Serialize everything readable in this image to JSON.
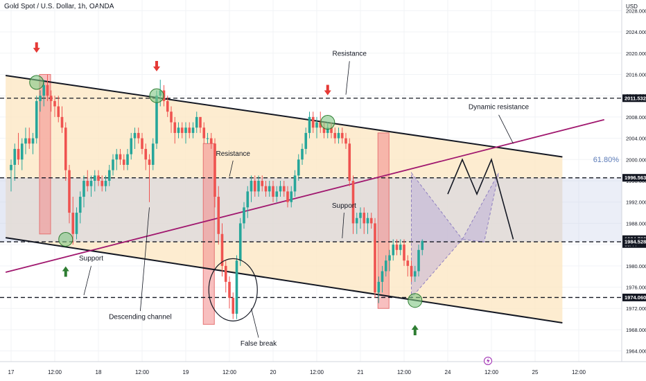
{
  "header": {
    "title": "Gold Spot / U.S. Dollar, 1h, OANDA"
  },
  "chart_data": {
    "type": "candlestick",
    "title": "Gold Spot / U.S. Dollar, 1h, OANDA",
    "currency": "USD",
    "y_axis": {
      "range": [
        1962,
        2030
      ],
      "ticks": [
        1964,
        1968,
        1972,
        1976,
        1980,
        1984,
        1988,
        1992,
        1996,
        2000,
        2004,
        2008,
        2012,
        2016,
        2020,
        2024,
        2028
      ]
    },
    "x_axis": {
      "ticks": [
        {
          "label": "17",
          "x": 0
        },
        {
          "label": "12:00",
          "x": 12
        },
        {
          "label": "18",
          "x": 24
        },
        {
          "label": "12:00",
          "x": 36
        },
        {
          "label": "19",
          "x": 48
        },
        {
          "label": "12:00",
          "x": 60
        },
        {
          "label": "20",
          "x": 72
        },
        {
          "label": "12:00",
          "x": 84
        },
        {
          "label": "21",
          "x": 96
        },
        {
          "label": "12:00",
          "x": 108
        },
        {
          "label": "24",
          "x": 120
        },
        {
          "label": "12:00",
          "x": 132
        },
        {
          "label": "25",
          "x": 144
        },
        {
          "label": "12:00",
          "x": 156
        }
      ]
    },
    "price_labels": [
      {
        "text": "2011.532",
        "value": 2011.532,
        "style": "line"
      },
      {
        "text": "1996.563",
        "value": 1996.563,
        "style": "line"
      },
      {
        "text": "1984.700",
        "sub": "06:44",
        "value": 1984.7,
        "style": "current"
      },
      {
        "text": "1984.528",
        "value": 1984.528,
        "style": "line"
      },
      {
        "text": "1974.060",
        "value": 1974.06,
        "style": "line"
      }
    ],
    "fib_label": "61.80%",
    "horizontal_levels": [
      2011.532,
      1996.563,
      1984.528,
      1974.06
    ],
    "zones": {
      "support_band": {
        "from": 1984.528,
        "to": 1996.563,
        "color": "#c5cee8"
      },
      "channel_fill_color": "#fde7c4"
    },
    "channel": {
      "upper": [
        {
          "x": -1.5,
          "y": 2015.8
        },
        {
          "x": 151.5,
          "y": 2000.5
        }
      ],
      "lower": [
        {
          "x": -1.5,
          "y": 1985.3
        },
        {
          "x": 151.5,
          "y": 1969.3
        }
      ]
    },
    "trendline": [
      {
        "x": -1.5,
        "y": 1978.8
      },
      {
        "x": 163,
        "y": 2007.5
      }
    ],
    "annotations": [
      {
        "text": "Resistance",
        "x": 93.0,
        "y": 2019.5
      },
      {
        "text": "Resistance",
        "x": 61.0,
        "y": 2000.7
      },
      {
        "text": "Dynamic resistance",
        "x": 134.0,
        "y": 2009.5
      },
      {
        "text": "Support",
        "x": 91.5,
        "y": 1990.9
      },
      {
        "text": "Support",
        "x": 22.0,
        "y": 1981.0
      },
      {
        "text": "Descending channel",
        "x": 35.5,
        "y": 1970.0
      },
      {
        "text": "False break",
        "x": 68.0,
        "y": 1965.0
      }
    ],
    "candles": [
      {
        "o": 1998,
        "h": 2000,
        "l": 1994,
        "c": 1999
      },
      {
        "o": 1999,
        "h": 2003,
        "l": 1996,
        "c": 2002
      },
      {
        "o": 2002,
        "h": 2005,
        "l": 1999,
        "c": 2000
      },
      {
        "o": 2000,
        "h": 2004,
        "l": 1998,
        "c": 2003
      },
      {
        "o": 2003,
        "h": 2006,
        "l": 2001,
        "c": 2004
      },
      {
        "o": 2004,
        "h": 2006,
        "l": 2002,
        "c": 2003
      },
      {
        "o": 2003,
        "h": 2005,
        "l": 2001,
        "c": 2004
      },
      {
        "o": 2004,
        "h": 2012,
        "l": 2003,
        "c": 2011
      },
      {
        "o": 2011,
        "h": 2013,
        "l": 2009,
        "c": 2012
      },
      {
        "o": 2012,
        "h": 2015,
        "l": 2010,
        "c": 2014
      },
      {
        "o": 2014,
        "h": 2016,
        "l": 2011,
        "c": 2012
      },
      {
        "o": 2012,
        "h": 2013,
        "l": 2009,
        "c": 2011
      },
      {
        "o": 2011,
        "h": 2012,
        "l": 2008,
        "c": 2010
      },
      {
        "o": 2010,
        "h": 2012,
        "l": 2007,
        "c": 2008
      },
      {
        "o": 2008,
        "h": 2010,
        "l": 2005,
        "c": 2006
      },
      {
        "o": 2006,
        "h": 2007,
        "l": 1996,
        "c": 1998
      },
      {
        "o": 1998,
        "h": 1999,
        "l": 1988,
        "c": 1990
      },
      {
        "o": 1990,
        "h": 1993,
        "l": 1984,
        "c": 1986
      },
      {
        "o": 1986,
        "h": 1991,
        "l": 1985,
        "c": 1990
      },
      {
        "o": 1990,
        "h": 1994,
        "l": 1988,
        "c": 1993
      },
      {
        "o": 1993,
        "h": 1997,
        "l": 1991,
        "c": 1996
      },
      {
        "o": 1996,
        "h": 1998,
        "l": 1994,
        "c": 1995
      },
      {
        "o": 1995,
        "h": 1997,
        "l": 1993,
        "c": 1996
      },
      {
        "o": 1996,
        "h": 1998,
        "l": 1994,
        "c": 1997
      },
      {
        "o": 1997,
        "h": 1998,
        "l": 1995,
        "c": 1996
      },
      {
        "o": 1996,
        "h": 1997,
        "l": 1994,
        "c": 1995
      },
      {
        "o": 1995,
        "h": 1997,
        "l": 1994,
        "c": 1996
      },
      {
        "o": 1996,
        "h": 1999,
        "l": 1995,
        "c": 1998
      },
      {
        "o": 1998,
        "h": 2001,
        "l": 1997,
        "c": 2000
      },
      {
        "o": 2000,
        "h": 2002,
        "l": 1998,
        "c": 2001
      },
      {
        "o": 2001,
        "h": 2002,
        "l": 1999,
        "c": 2000
      },
      {
        "o": 2000,
        "h": 2001,
        "l": 1998,
        "c": 1999
      },
      {
        "o": 1999,
        "h": 2002,
        "l": 1998,
        "c": 2001
      },
      {
        "o": 2001,
        "h": 2005,
        "l": 2000,
        "c": 2004
      },
      {
        "o": 2004,
        "h": 2006,
        "l": 2002,
        "c": 2005
      },
      {
        "o": 2005,
        "h": 2006,
        "l": 2003,
        "c": 2004
      },
      {
        "o": 2004,
        "h": 2005,
        "l": 2001,
        "c": 2002
      },
      {
        "o": 2002,
        "h": 2003,
        "l": 1998,
        "c": 2000
      },
      {
        "o": 2000,
        "h": 2001,
        "l": 1992,
        "c": 1999
      },
      {
        "o": 1999,
        "h": 2004,
        "l": 1998,
        "c": 2003
      },
      {
        "o": 2003,
        "h": 2013,
        "l": 2002,
        "c": 2012
      },
      {
        "o": 2012,
        "h": 2015,
        "l": 2010,
        "c": 2013
      },
      {
        "o": 2013,
        "h": 2014,
        "l": 2010,
        "c": 2011
      },
      {
        "o": 2011,
        "h": 2012,
        "l": 2008,
        "c": 2009
      },
      {
        "o": 2009,
        "h": 2010,
        "l": 2005,
        "c": 2007
      },
      {
        "o": 2007,
        "h": 2008,
        "l": 2003,
        "c": 2005
      },
      {
        "o": 2005,
        "h": 2007,
        "l": 2004,
        "c": 2006
      },
      {
        "o": 2006,
        "h": 2007,
        "l": 2004,
        "c": 2005
      },
      {
        "o": 2005,
        "h": 2007,
        "l": 2003,
        "c": 2006
      },
      {
        "o": 2006,
        "h": 2007,
        "l": 2004,
        "c": 2005
      },
      {
        "o": 2005,
        "h": 2007,
        "l": 2004,
        "c": 2006
      },
      {
        "o": 2006,
        "h": 2009,
        "l": 2005,
        "c": 2008
      },
      {
        "o": 2008,
        "h": 2008,
        "l": 2005,
        "c": 2006
      },
      {
        "o": 2006,
        "h": 2007,
        "l": 2003,
        "c": 2004
      },
      {
        "o": 2004,
        "h": 2005,
        "l": 2003,
        "c": 2004
      },
      {
        "o": 2004,
        "h": 2005,
        "l": 2002,
        "c": 2003
      },
      {
        "o": 2003,
        "h": 2004,
        "l": 1991,
        "c": 1993
      },
      {
        "o": 1993,
        "h": 1995,
        "l": 1984,
        "c": 1986
      },
      {
        "o": 1986,
        "h": 1988,
        "l": 1978,
        "c": 1980
      },
      {
        "o": 1980,
        "h": 1981,
        "l": 1975,
        "c": 1977
      },
      {
        "o": 1977,
        "h": 1978,
        "l": 1972,
        "c": 1974
      },
      {
        "o": 1974,
        "h": 1975,
        "l": 1970,
        "c": 1971
      },
      {
        "o": 1971,
        "h": 1982,
        "l": 1970,
        "c": 1981
      },
      {
        "o": 1981,
        "h": 1989,
        "l": 1980,
        "c": 1988
      },
      {
        "o": 1988,
        "h": 1992,
        "l": 1987,
        "c": 1991
      },
      {
        "o": 1991,
        "h": 1995,
        "l": 1989,
        "c": 1994
      },
      {
        "o": 1994,
        "h": 1997,
        "l": 1992,
        "c": 1996
      },
      {
        "o": 1996,
        "h": 1997,
        "l": 1993,
        "c": 1994
      },
      {
        "o": 1994,
        "h": 1997,
        "l": 1993,
        "c": 1996
      },
      {
        "o": 1996,
        "h": 1997,
        "l": 1994,
        "c": 1995
      },
      {
        "o": 1995,
        "h": 1996,
        "l": 1993,
        "c": 1994
      },
      {
        "o": 1994,
        "h": 1996,
        "l": 1993,
        "c": 1995
      },
      {
        "o": 1995,
        "h": 1996,
        "l": 1992,
        "c": 1993
      },
      {
        "o": 1993,
        "h": 1995,
        "l": 1992,
        "c": 1994
      },
      {
        "o": 1994,
        "h": 1996,
        "l": 1993,
        "c": 1995
      },
      {
        "o": 1995,
        "h": 1996,
        "l": 1993,
        "c": 1994
      },
      {
        "o": 1994,
        "h": 1995,
        "l": 1991,
        "c": 1992
      },
      {
        "o": 1992,
        "h": 1995,
        "l": 1991,
        "c": 1994
      },
      {
        "o": 1994,
        "h": 1998,
        "l": 1993,
        "c": 1997
      },
      {
        "o": 1997,
        "h": 2001,
        "l": 1996,
        "c": 2000
      },
      {
        "o": 2000,
        "h": 2003,
        "l": 1999,
        "c": 2002
      },
      {
        "o": 2002,
        "h": 2006,
        "l": 2001,
        "c": 2005
      },
      {
        "o": 2005,
        "h": 2009,
        "l": 2004,
        "c": 2008
      },
      {
        "o": 2008,
        "h": 2009,
        "l": 2005,
        "c": 2006
      },
      {
        "o": 2006,
        "h": 2008,
        "l": 2004,
        "c": 2007
      },
      {
        "o": 2007,
        "h": 2009,
        "l": 2005,
        "c": 2006
      },
      {
        "o": 2006,
        "h": 2007,
        "l": 2004,
        "c": 2005
      },
      {
        "o": 2005,
        "h": 2007,
        "l": 2004,
        "c": 2006
      },
      {
        "o": 2006,
        "h": 2007,
        "l": 2004,
        "c": 2005
      },
      {
        "o": 2005,
        "h": 2006,
        "l": 2003,
        "c": 2004
      },
      {
        "o": 2004,
        "h": 2006,
        "l": 2003,
        "c": 2005
      },
      {
        "o": 2005,
        "h": 2006,
        "l": 2003,
        "c": 2004
      },
      {
        "o": 2004,
        "h": 2005,
        "l": 2002,
        "c": 2003
      },
      {
        "o": 2003,
        "h": 2004,
        "l": 1995,
        "c": 1996
      },
      {
        "o": 1996,
        "h": 1997,
        "l": 1986,
        "c": 1988
      },
      {
        "o": 1988,
        "h": 1990,
        "l": 1986,
        "c": 1989
      },
      {
        "o": 1989,
        "h": 1991,
        "l": 1987,
        "c": 1990
      },
      {
        "o": 1990,
        "h": 1991,
        "l": 1986,
        "c": 1988
      },
      {
        "o": 1988,
        "h": 1990,
        "l": 1986,
        "c": 1989
      },
      {
        "o": 1989,
        "h": 1990,
        "l": 1987,
        "c": 1988
      },
      {
        "o": 1988,
        "h": 1989,
        "l": 1974,
        "c": 1975
      },
      {
        "o": 1975,
        "h": 1978,
        "l": 1973,
        "c": 1977
      },
      {
        "o": 1977,
        "h": 1980,
        "l": 1975,
        "c": 1979
      },
      {
        "o": 1979,
        "h": 1982,
        "l": 1978,
        "c": 1981
      },
      {
        "o": 1981,
        "h": 1983,
        "l": 1979,
        "c": 1982
      },
      {
        "o": 1982,
        "h": 1985,
        "l": 1981,
        "c": 1984
      },
      {
        "o": 1984,
        "h": 1985,
        "l": 1982,
        "c": 1983
      },
      {
        "o": 1983,
        "h": 1985,
        "l": 1982,
        "c": 1984
      },
      {
        "o": 1984,
        "h": 1985,
        "l": 1980,
        "c": 1981
      },
      {
        "o": 1981,
        "h": 1982,
        "l": 1978,
        "c": 1980
      },
      {
        "o": 1980,
        "h": 1981,
        "l": 1977,
        "c": 1978
      },
      {
        "o": 1978,
        "h": 1980,
        "l": 1977,
        "c": 1979
      },
      {
        "o": 1979,
        "h": 1984,
        "l": 1978,
        "c": 1983
      },
      {
        "o": 1983,
        "h": 1985,
        "l": 1982,
        "c": 1984.7
      }
    ]
  }
}
